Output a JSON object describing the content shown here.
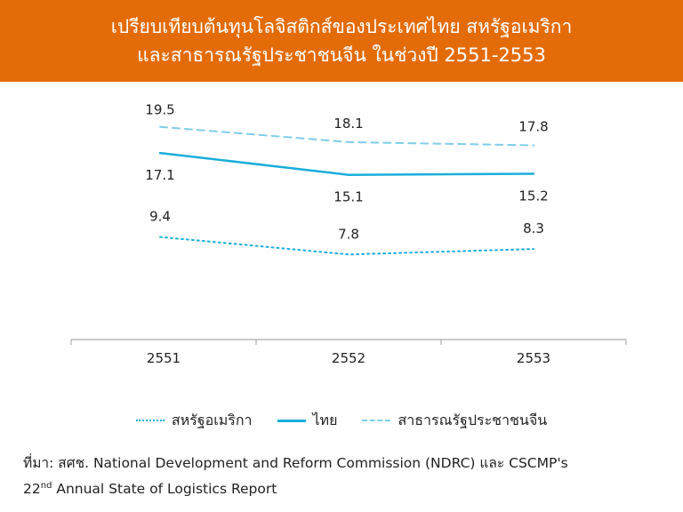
{
  "title": {
    "line1": "เปรียบเทียบต้นทุนโลจิสติกส์ของประเทศไทย สหรัฐอเมริกา",
    "line2": "และสาธารณรัฐประชาชนจีน ในช่วงปี 2551-2553"
  },
  "colors": {
    "banner": "#e36c09",
    "series_line": "#1aaedb",
    "series_dashed": "#7fcdea"
  },
  "chart_data": {
    "type": "line",
    "title": "เปรียบเทียบต้นทุนโลจิสติกส์ของประเทศไทย สหรัฐอเมริกา และสาธารณรัฐประชาชนจีน ในช่วงปี 2551-2553",
    "xlabel": "",
    "ylabel": "",
    "categories": [
      "2551",
      "2552",
      "2553"
    ],
    "ylim": [
      0,
      22
    ],
    "grid": false,
    "legend_position": "bottom",
    "series": [
      {
        "name": "สหรัฐอเมริกา",
        "style": "dotted",
        "values": [
          9.4,
          7.8,
          8.3
        ],
        "labels": [
          "9.4",
          "7.8",
          "8.3"
        ]
      },
      {
        "name": "ไทย",
        "style": "solid",
        "values": [
          17.1,
          15.1,
          15.2
        ],
        "labels": [
          "17.1",
          "15.1",
          "15.2"
        ]
      },
      {
        "name": "สาธารณรัฐประชาชนจีน",
        "style": "dashed",
        "values": [
          19.5,
          18.1,
          17.8
        ],
        "labels": [
          "19.5",
          "18.1",
          "17.8"
        ]
      }
    ]
  },
  "legend": {
    "items": [
      "สหรัฐอเมริกา",
      "ไทย",
      "สาธารณรัฐประชาชนจีน"
    ]
  },
  "source": {
    "line1": "ที่มา: สศช. National Development and Reform Commission (NDRC) และ CSCMP's",
    "line2_prefix": "22",
    "line2_sup": "nd",
    "line2_rest": " Annual State of Logistics Report"
  }
}
